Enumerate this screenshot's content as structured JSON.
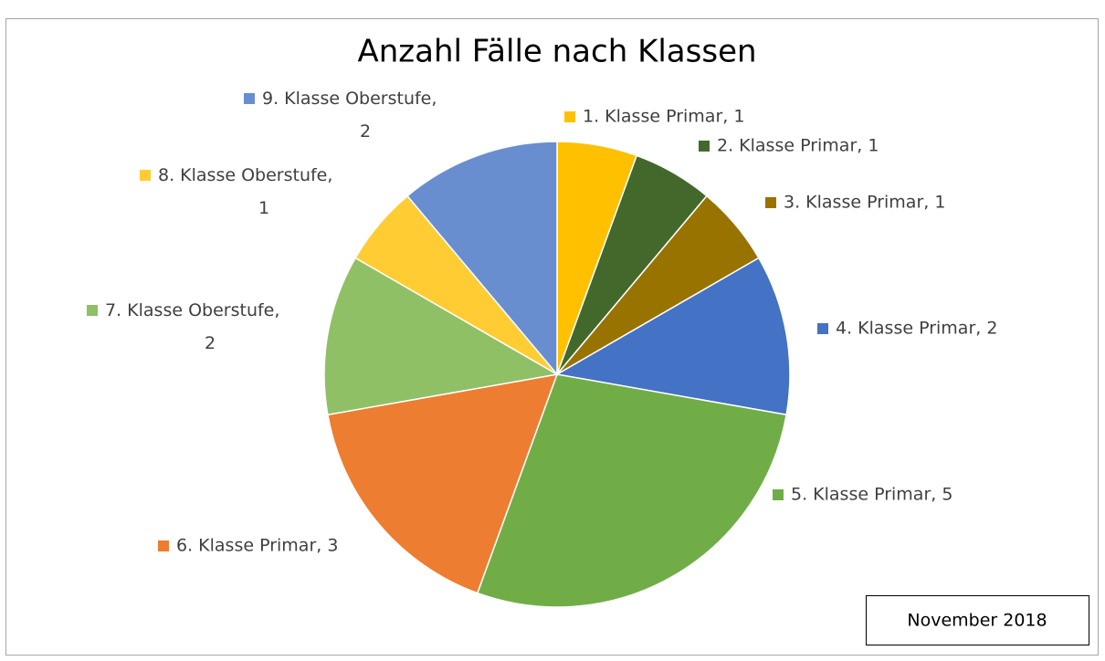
{
  "chart_data": {
    "type": "pie",
    "title": "Anzahl Fälle nach Klassen",
    "categories": [
      "1. Klasse Primar",
      "2. Klasse Primar",
      "3. Klasse Primar",
      "4. Klasse Primar",
      "5. Klasse Primar",
      "6. Klasse Primar",
      "7. Klasse Oberstufe",
      "8. Klasse Oberstufe",
      "9. Klasse Oberstufe"
    ],
    "values": [
      1,
      1,
      1,
      2,
      5,
      3,
      2,
      1,
      2
    ],
    "value_labels": [
      "1. Klasse Primar, 1",
      "2. Klasse Primar, 1",
      "3. Klasse Primar, 1",
      "4. Klasse Primar, 2",
      "5. Klasse Primar, 5",
      "6. Klasse Primar, 3",
      "7. Klasse Oberstufe, 2",
      "8. Klasse Oberstufe, 1",
      "9. Klasse Oberstufe, 2"
    ],
    "colors": [
      "#ffc000",
      "#43682b",
      "#997300",
      "#4472c4",
      "#70ad47",
      "#ed7d31",
      "#8fc066",
      "#ffcd33",
      "#698ed0"
    ],
    "annotation": "November 2018"
  }
}
